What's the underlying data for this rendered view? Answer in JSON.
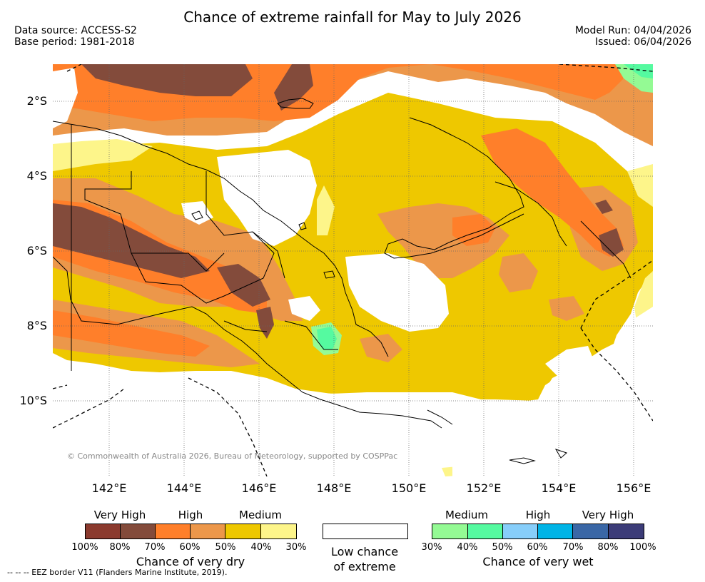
{
  "title": "Chance of extreme rainfall for May to July 2026",
  "data_source": "Data source: ACCESS-S2",
  "base_period": "Base period: 1981-2018",
  "model_run": "Model Run: 04/04/2026",
  "issued": "Issued: 06/04/2026",
  "axes": {
    "y_labels": [
      "2°S",
      "4°S",
      "6°S",
      "8°S",
      "10°S"
    ],
    "x_labels": [
      "142°E",
      "144°E",
      "146°E",
      "148°E",
      "150°E",
      "152°E",
      "154°E",
      "156°E"
    ]
  },
  "copyright": "© Commonwealth of Australia 2026, Bureau of Meteorology, supported by COSPPac",
  "legend": {
    "dry": {
      "headers": [
        "Very High",
        "High",
        "Medium"
      ],
      "colors": [
        "#8B3A2E",
        "#834B3B",
        "#FF7F2A",
        "#EC974A",
        "#EEC800",
        "#FDF58A"
      ],
      "ticks": [
        "100%",
        "80%",
        "70%",
        "60%",
        "50%",
        "40%",
        "30%"
      ],
      "title": "Chance of very dry"
    },
    "low": {
      "color": "#FFFFFF",
      "line1": "Low chance",
      "line2": "of extreme"
    },
    "wet": {
      "headers": [
        "Medium",
        "High",
        "Very High"
      ],
      "colors": [
        "#94FA94",
        "#55FAA0",
        "#87CEFA",
        "#00B4E6",
        "#3A67A6",
        "#3C3C78"
      ],
      "ticks": [
        "30%",
        "40%",
        "50%",
        "60%",
        "70%",
        "80%",
        "100%"
      ],
      "title": "Chance of very wet"
    }
  },
  "eez_note": "--  --  -- EEZ border V11 (Flanders Marine Institute, 2019)."
}
